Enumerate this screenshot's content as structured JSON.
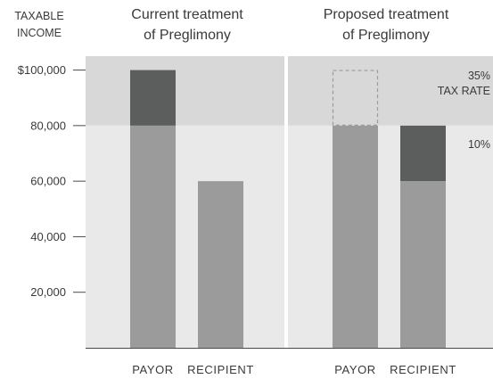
{
  "chart_data": {
    "type": "bar",
    "y_axis_title_line1": "TAXABLE",
    "y_axis_title_line2": "INCOME",
    "ylim": [
      0,
      105000
    ],
    "yticks": [
      {
        "value": 100000,
        "label": "$100,000"
      },
      {
        "value": 80000,
        "label": "80,000"
      },
      {
        "value": 60000,
        "label": "60,000"
      },
      {
        "value": 40000,
        "label": "40,000"
      },
      {
        "value": 20000,
        "label": "20,000"
      }
    ],
    "bracket_threshold": 80000,
    "bands": [
      {
        "rate": "35%",
        "label": "TAX RATE",
        "from": 80000,
        "to": 105000
      },
      {
        "rate": "10%",
        "from": 0,
        "to": 80000
      }
    ],
    "panels": [
      {
        "title_line1": "Current treatment",
        "title_line2": "of Preglimony",
        "bars": [
          {
            "category": "PAYOR",
            "segments": [
              {
                "from": 0,
                "to": 80000,
                "kind": "income"
              },
              {
                "from": 80000,
                "to": 100000,
                "kind": "taxed"
              }
            ]
          },
          {
            "category": "RECIPIENT",
            "segments": [
              {
                "from": 0,
                "to": 60000,
                "kind": "income"
              }
            ]
          }
        ]
      },
      {
        "title_line1": "Proposed treatment",
        "title_line2": "of Preglimony",
        "bars": [
          {
            "category": "PAYOR",
            "segments": [
              {
                "from": 0,
                "to": 80000,
                "kind": "income"
              },
              {
                "from": 80000,
                "to": 100000,
                "kind": "deducted"
              }
            ]
          },
          {
            "category": "RECIPIENT",
            "segments": [
              {
                "from": 0,
                "to": 60000,
                "kind": "income"
              },
              {
                "from": 60000,
                "to": 80000,
                "kind": "taxed"
              }
            ]
          }
        ]
      }
    ]
  },
  "colors": {
    "band_upper": "#d8d8d8",
    "band_lower": "#e9e9e9",
    "income": "#9b9b9b",
    "taxed": "#5c5e5d",
    "deducted_outline": "#9b9b9b",
    "divider": "#ffffff",
    "axis": "#4a4a4a",
    "text": "#3a3a3a"
  }
}
